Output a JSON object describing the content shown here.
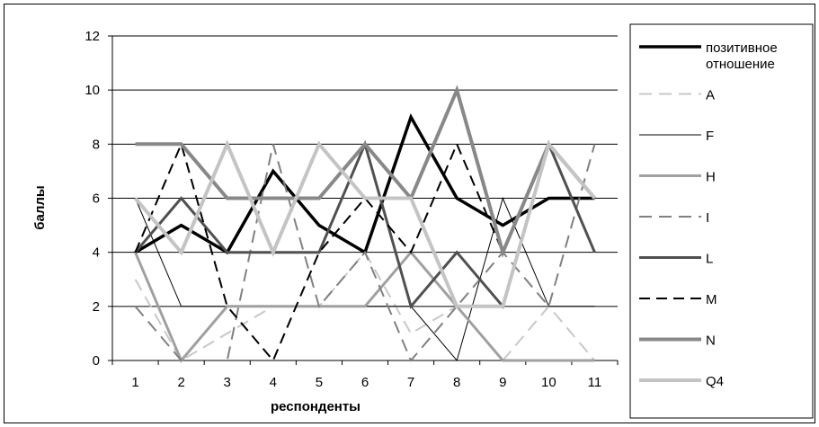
{
  "chart_data": {
    "type": "line",
    "xlabel": "респонденты",
    "ylabel": "баллы",
    "ylim": [
      0,
      12
    ],
    "yticks": [
      "0",
      "2",
      "4",
      "6",
      "8",
      "10",
      "12"
    ],
    "categories": [
      "1",
      "2",
      "3",
      "4",
      "5",
      "6",
      "7",
      "8",
      "9",
      "10",
      "11"
    ],
    "grid": true,
    "legend_position": "right",
    "series": [
      {
        "name": "позитивное отношение",
        "name_lines": [
          "позитивное",
          "отношение"
        ],
        "color": "#000000",
        "width": 3.5,
        "dash": "",
        "values": [
          4,
          5,
          4,
          7,
          5,
          4,
          9,
          6,
          5,
          6,
          6
        ]
      },
      {
        "name": "A",
        "name_lines": [
          "A"
        ],
        "color": "#c8c8c8",
        "width": 2,
        "dash": "14,8",
        "values": [
          3,
          0,
          1,
          2,
          2,
          4,
          1,
          2,
          0,
          2,
          0
        ]
      },
      {
        "name": "F",
        "name_lines": [
          "F"
        ],
        "color": "#000000",
        "width": 1,
        "dash": "",
        "values": [
          6,
          2,
          2,
          2,
          2,
          2,
          2,
          0,
          6,
          2,
          2
        ]
      },
      {
        "name": "H",
        "name_lines": [
          "H"
        ],
        "color": "#a0a0a0",
        "width": 3,
        "dash": "",
        "values": [
          4,
          0,
          2,
          2,
          2,
          2,
          4,
          2,
          0,
          0,
          0
        ]
      },
      {
        "name": "I",
        "name_lines": [
          "I"
        ],
        "color": "#808080",
        "width": 2,
        "dash": "14,8",
        "values": [
          2,
          0,
          0,
          8,
          2,
          4,
          0,
          2,
          4,
          2,
          8
        ]
      },
      {
        "name": "L",
        "name_lines": [
          "L"
        ],
        "color": "#505050",
        "width": 3,
        "dash": "",
        "values": [
          4,
          6,
          4,
          4,
          4,
          8,
          2,
          4,
          2,
          8,
          4
        ]
      },
      {
        "name": "M",
        "name_lines": [
          "M"
        ],
        "color": "#000000",
        "width": 2,
        "dash": "12,7",
        "values": [
          4,
          8,
          2,
          0,
          4,
          6,
          4,
          8,
          4,
          8,
          6
        ]
      },
      {
        "name": "N",
        "name_lines": [
          "N"
        ],
        "color": "#888888",
        "width": 4,
        "dash": "",
        "values": [
          8,
          8,
          6,
          6,
          6,
          8,
          6,
          10,
          4,
          8,
          6
        ]
      },
      {
        "name": "Q4",
        "name_lines": [
          "Q4"
        ],
        "color": "#c4c4c4",
        "width": 4,
        "dash": "",
        "values": [
          6,
          4,
          8,
          4,
          8,
          6,
          6,
          2,
          2,
          8,
          6
        ]
      }
    ]
  }
}
